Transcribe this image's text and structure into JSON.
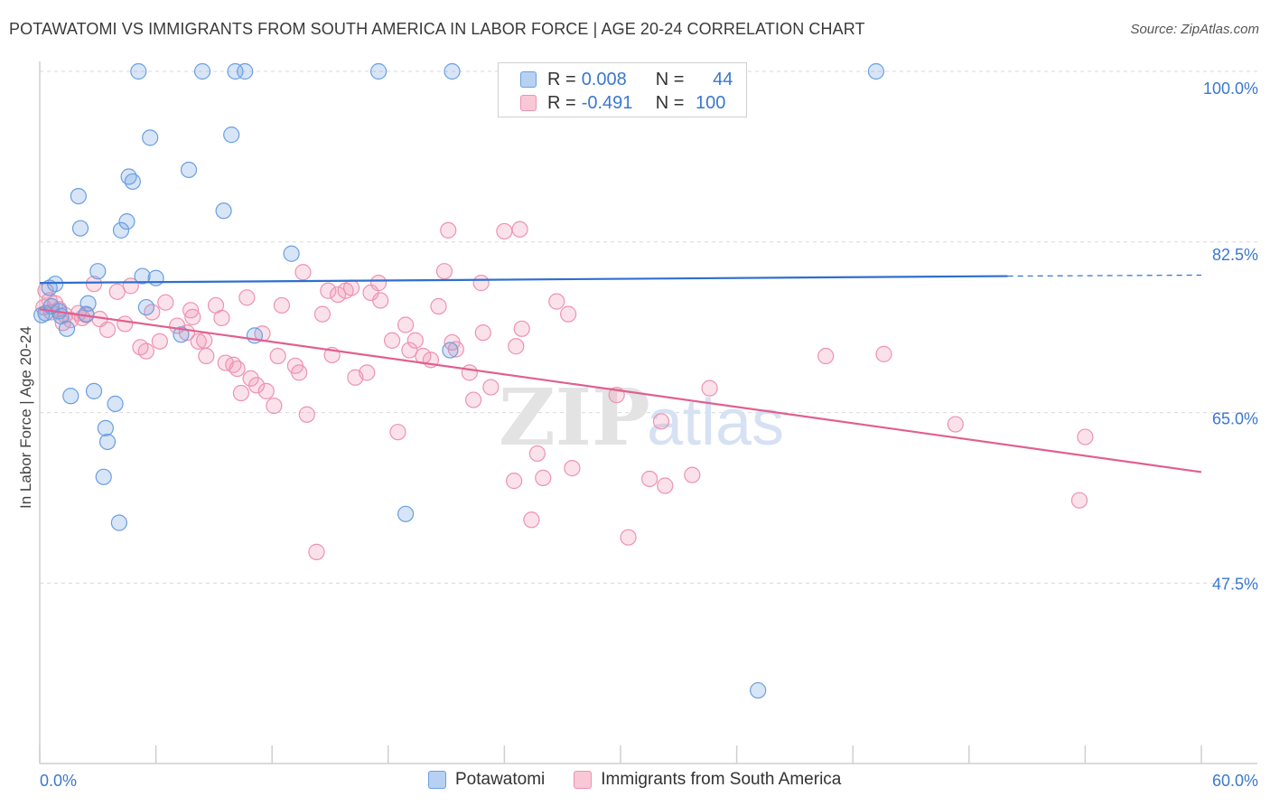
{
  "title": "POTAWATOMI VS IMMIGRANTS FROM SOUTH AMERICA IN LABOR FORCE | AGE 20-24 CORRELATION CHART",
  "source": "Source: ZipAtlas.com",
  "watermark": {
    "zip": "ZIP",
    "atlas": "atlas"
  },
  "legend": {
    "r_label": "R =",
    "n_label": "N =",
    "series1": {
      "r": "0.008",
      "n": "44"
    },
    "series2": {
      "r": "-0.491",
      "n": "100"
    }
  },
  "chart_data": {
    "type": "scatter",
    "title": "POTAWATOMI VS IMMIGRANTS FROM SOUTH AMERICA IN LABOR FORCE | AGE 20-24 CORRELATION CHART",
    "xlabel": "",
    "ylabel": "In Labor Force | Age 20-24",
    "xlim": [
      0,
      60
    ],
    "ylim": [
      31,
      102
    ],
    "x_tick_labels": [
      "0.0%",
      "60.0%"
    ],
    "y_ticks": [
      100,
      82.5,
      65,
      47.5
    ],
    "y_tick_labels": [
      "100.0%",
      "82.5%",
      "65.0%",
      "47.5%"
    ],
    "colors": {
      "series1": "#6a9fe0",
      "series2": "#ee92b0",
      "line1": "#2f6fd0",
      "line2": "#e06090",
      "axis_text": "#3a78d0"
    },
    "series": [
      {
        "name": "Potawatomi",
        "r": 0.008,
        "n": 44,
        "trend": {
          "x0": 0,
          "y0": 78.3,
          "x1": 50,
          "y1": 79.0,
          "dash_x1": 60,
          "dash_y1": 79.1
        },
        "points": [
          [
            5.1,
            100
          ],
          [
            8.4,
            100
          ],
          [
            10.1,
            100
          ],
          [
            10.6,
            100
          ],
          [
            17.5,
            100
          ],
          [
            21.3,
            100
          ],
          [
            43.2,
            100
          ],
          [
            5.7,
            93.2
          ],
          [
            9.9,
            93.5
          ],
          [
            7.7,
            89.9
          ],
          [
            4.8,
            88.7
          ],
          [
            4.6,
            89.2
          ],
          [
            2.0,
            87.2
          ],
          [
            9.5,
            85.7
          ],
          [
            4.5,
            84.6
          ],
          [
            2.1,
            83.9
          ],
          [
            4.2,
            83.7
          ],
          [
            13.0,
            81.3
          ],
          [
            3.0,
            79.5
          ],
          [
            5.3,
            79.0
          ],
          [
            6.0,
            78.8
          ],
          [
            0.8,
            78.2
          ],
          [
            0.5,
            77.8
          ],
          [
            2.5,
            76.2
          ],
          [
            0.6,
            75.9
          ],
          [
            5.5,
            75.8
          ],
          [
            1.0,
            75.4
          ],
          [
            0.3,
            75.2
          ],
          [
            1.1,
            74.9
          ],
          [
            2.4,
            75.1
          ],
          [
            1.4,
            73.6
          ],
          [
            11.1,
            72.9
          ],
          [
            7.3,
            73.0
          ],
          [
            21.2,
            71.4
          ],
          [
            2.8,
            67.2
          ],
          [
            1.6,
            66.7
          ],
          [
            3.9,
            65.9
          ],
          [
            3.4,
            63.4
          ],
          [
            3.5,
            62.0
          ],
          [
            3.3,
            58.4
          ],
          [
            18.9,
            54.6
          ],
          [
            4.1,
            53.7
          ],
          [
            0.1,
            75.0
          ],
          [
            37.1,
            36.5
          ]
        ]
      },
      {
        "name": "Immigrants from South America",
        "r": -0.491,
        "n": 100,
        "trend": {
          "x0": 0,
          "y0": 75.6,
          "x1": 60,
          "y1": 58.9
        },
        "points": [
          [
            0.3,
            77.5
          ],
          [
            0.5,
            76.5
          ],
          [
            0.8,
            76.2
          ],
          [
            1.0,
            75.6
          ],
          [
            0.6,
            75.3
          ],
          [
            1.3,
            75.0
          ],
          [
            1.6,
            74.5
          ],
          [
            2.0,
            75.2
          ],
          [
            2.4,
            75.0
          ],
          [
            1.2,
            74.2
          ],
          [
            2.8,
            78.2
          ],
          [
            4.0,
            77.4
          ],
          [
            4.7,
            78.0
          ],
          [
            5.8,
            75.3
          ],
          [
            3.5,
            73.5
          ],
          [
            4.4,
            74.1
          ],
          [
            3.1,
            74.6
          ],
          [
            5.2,
            71.7
          ],
          [
            5.5,
            71.3
          ],
          [
            6.2,
            72.3
          ],
          [
            6.5,
            76.3
          ],
          [
            7.1,
            73.9
          ],
          [
            7.6,
            73.2
          ],
          [
            7.8,
            75.5
          ],
          [
            7.9,
            74.8
          ],
          [
            8.2,
            72.3
          ],
          [
            8.5,
            72.4
          ],
          [
            8.6,
            70.8
          ],
          [
            9.1,
            76.0
          ],
          [
            9.4,
            74.7
          ],
          [
            9.6,
            70.1
          ],
          [
            10.0,
            69.9
          ],
          [
            10.2,
            69.5
          ],
          [
            10.4,
            67.0
          ],
          [
            10.7,
            76.8
          ],
          [
            10.9,
            68.5
          ],
          [
            11.2,
            67.8
          ],
          [
            11.5,
            73.1
          ],
          [
            11.7,
            67.2
          ],
          [
            12.1,
            65.7
          ],
          [
            12.3,
            70.8
          ],
          [
            12.5,
            76.0
          ],
          [
            13.2,
            69.8
          ],
          [
            13.4,
            69.1
          ],
          [
            13.6,
            79.4
          ],
          [
            13.8,
            64.8
          ],
          [
            14.3,
            50.7
          ],
          [
            14.6,
            75.1
          ],
          [
            14.9,
            77.5
          ],
          [
            15.1,
            70.9
          ],
          [
            15.4,
            77.1
          ],
          [
            15.8,
            77.5
          ],
          [
            16.1,
            77.8
          ],
          [
            16.3,
            68.6
          ],
          [
            16.9,
            69.1
          ],
          [
            17.1,
            77.3
          ],
          [
            17.5,
            78.3
          ],
          [
            17.6,
            76.5
          ],
          [
            18.2,
            72.4
          ],
          [
            18.5,
            63.0
          ],
          [
            18.9,
            74.0
          ],
          [
            19.1,
            71.4
          ],
          [
            19.4,
            72.4
          ],
          [
            19.8,
            70.8
          ],
          [
            20.2,
            70.4
          ],
          [
            20.6,
            75.9
          ],
          [
            20.9,
            79.5
          ],
          [
            21.1,
            83.7
          ],
          [
            21.3,
            72.2
          ],
          [
            21.5,
            71.5
          ],
          [
            22.2,
            69.1
          ],
          [
            22.4,
            66.3
          ],
          [
            22.8,
            78.3
          ],
          [
            22.9,
            73.2
          ],
          [
            23.3,
            67.6
          ],
          [
            24.0,
            83.6
          ],
          [
            24.5,
            58.0
          ],
          [
            24.6,
            71.8
          ],
          [
            24.8,
            83.8
          ],
          [
            24.9,
            73.6
          ],
          [
            25.4,
            54.0
          ],
          [
            25.7,
            60.8
          ],
          [
            26.0,
            58.3
          ],
          [
            26.7,
            76.4
          ],
          [
            27.3,
            75.1
          ],
          [
            27.5,
            59.3
          ],
          [
            29.8,
            66.8
          ],
          [
            30.4,
            52.2
          ],
          [
            31.5,
            58.2
          ],
          [
            32.1,
            64.1
          ],
          [
            32.3,
            57.5
          ],
          [
            33.7,
            58.6
          ],
          [
            34.6,
            67.5
          ],
          [
            40.6,
            70.8
          ],
          [
            43.6,
            71.0
          ],
          [
            47.3,
            63.8
          ],
          [
            53.7,
            56.0
          ],
          [
            54.0,
            62.5
          ],
          [
            0.2,
            75.8
          ],
          [
            2.2,
            74.7
          ]
        ]
      }
    ]
  },
  "bottom_legend": [
    "Potawatomi",
    "Immigrants from South America"
  ]
}
